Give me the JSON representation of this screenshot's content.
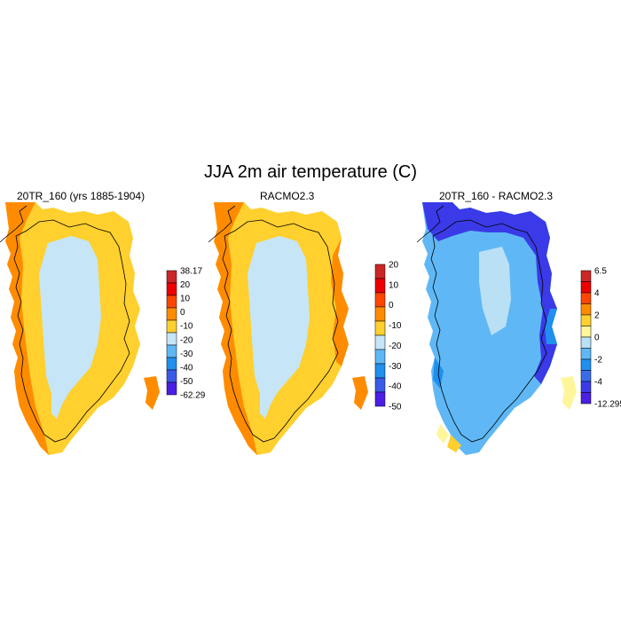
{
  "title": "JJA 2m air temperature (C)",
  "panels": [
    {
      "title": "20TR_160 (yrs 1885-1904)",
      "scheme": "abs",
      "colorbar": {
        "labels": [
          "38.17",
          "20",
          "10",
          "0",
          "-10",
          "-20",
          "-30",
          "-40",
          "-50",
          "-62.29"
        ],
        "colors": [
          "#cd2626",
          "#ee0000",
          "#ff4500",
          "#ff8c00",
          "#ffd02e",
          "#c6e6f7",
          "#5fb8f5",
          "#1f8ff0",
          "#3a5be8",
          "#4b1fe6"
        ]
      }
    },
    {
      "title": "RACMO2.3",
      "scheme": "abs",
      "colorbar": {
        "labels": [
          "20",
          "10",
          "0",
          "-10",
          "-20",
          "-30",
          "-40",
          "-50"
        ],
        "colors": [
          "#cd2626",
          "#ee0000",
          "#ff4500",
          "#ff8c00",
          "#ffd02e",
          "#c6e6f7",
          "#5fb8f5",
          "#1f8ff0",
          "#3a5be8",
          "#4b1fe6"
        ]
      }
    },
    {
      "title": "20TR_160 - RACMO2.3",
      "scheme": "diff",
      "colorbar": {
        "labels": [
          "6.5",
          "4",
          "2",
          "0",
          "-2",
          "-4",
          "-12.295"
        ],
        "colors": [
          "#cd2626",
          "#ee0000",
          "#ff4500",
          "#ff8c00",
          "#ffd02e",
          "#fff59a",
          "#b9e0f5",
          "#5fb8f5",
          "#1f8ff0",
          "#3a6be8",
          "#3a3ae8",
          "#4b1fe6"
        ]
      }
    }
  ]
}
